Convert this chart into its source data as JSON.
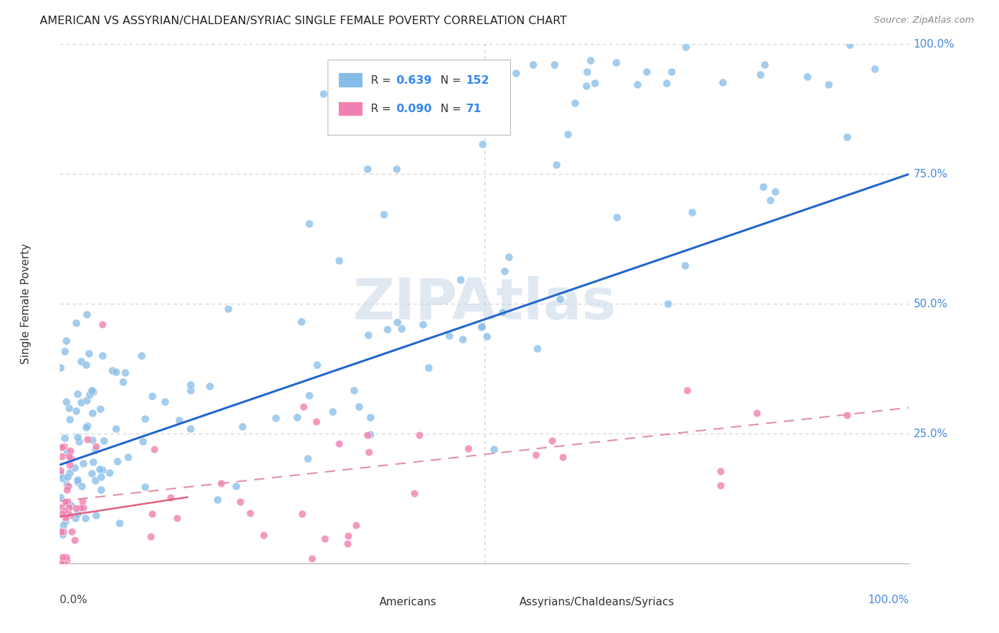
{
  "title": "AMERICAN VS ASSYRIAN/CHALDEAN/SYRIAC SINGLE FEMALE POVERTY CORRELATION CHART",
  "source": "Source: ZipAtlas.com",
  "ylabel": "Single Female Poverty",
  "legend_labels": [
    "Americans",
    "Assyrians/Chaldeans/Syriacs"
  ],
  "watermark": "ZIPAtlas",
  "american_color": "#85bce8",
  "assyrian_color": "#f080b0",
  "american_line_color": "#2266cc",
  "assyrian_line_solid_color": "#e06080",
  "assyrian_line_dashed_color": "#e090a8",
  "R_american": 0.639,
  "N_american": 152,
  "R_assyrian": 0.09,
  "N_assyrian": 71,
  "ytick_positions": [
    0.25,
    0.5,
    0.75,
    1.0
  ],
  "ytick_labels": [
    "25.0%",
    "50.0%",
    "75.0%",
    "100.0%"
  ],
  "background_color": "#ffffff",
  "grid_color": "#cccccc"
}
